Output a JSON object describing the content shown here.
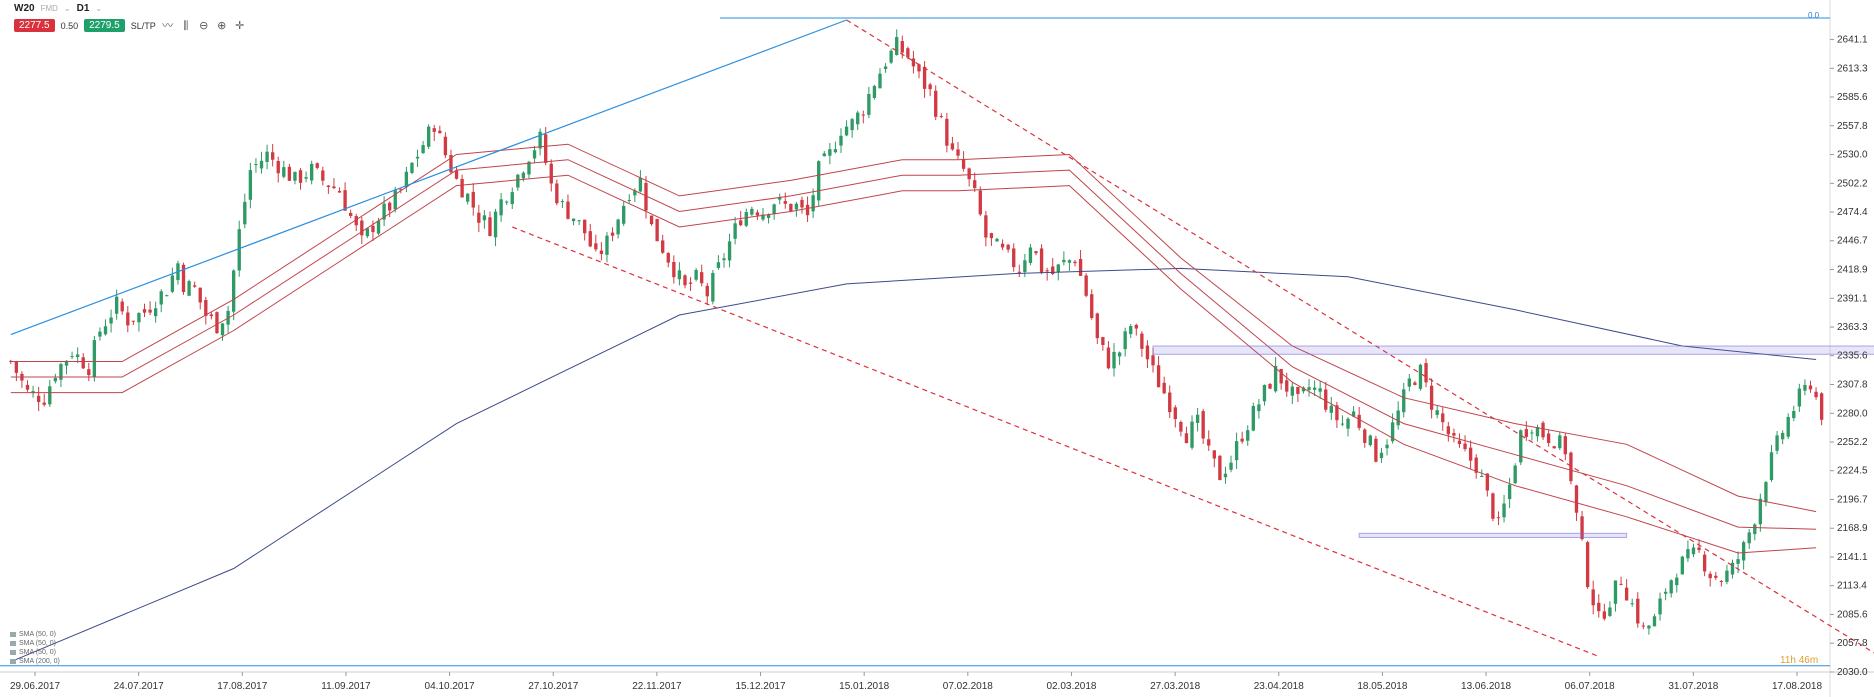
{
  "toolbar": {
    "symbol": "W20",
    "symbol_sub": "FMD",
    "interval": "D1",
    "sell_price": "2277.5",
    "lot": "0.50",
    "buy_price": "2279.5",
    "sltp": "SL/TP",
    "icons": [
      "line-chart-icon",
      "candles-icon",
      "zoom-out-icon",
      "zoom-in-icon",
      "crosshair-icon"
    ]
  },
  "fib_label": "0.0",
  "countdown": "11h 46m",
  "legend": [
    "SMA (50, 0)",
    "SMA (50, 0)",
    "SMA (50, 0)",
    "SMA (200, 0)"
  ],
  "colors": {
    "bull": "#2e9a65",
    "bear": "#d23a43",
    "sma_envelope": "#c0444a",
    "sma200": "#3d4a8c",
    "trendline": "#2a8fe0",
    "channel": "#d9323c",
    "zone": "#7b6fd6"
  },
  "chart_data": {
    "type": "candlestick",
    "title": "W20, D1",
    "y_axis_ticks": [
      "2641.1",
      "2613.3",
      "2585.6",
      "2557.8",
      "2530.0",
      "2502.2",
      "2474.4",
      "2446.7",
      "2418.9",
      "2391.1",
      "2363.3",
      "2335.6",
      "2307.8",
      "2280.0",
      "2252.2",
      "2224.5",
      "2196.7",
      "2168.9",
      "2141.1",
      "2113.4",
      "2085.6",
      "2057.8",
      "2030.0"
    ],
    "x_axis_ticks": [
      "29.06.2017",
      "24.07.2017",
      "17.08.2017",
      "11.09.2017",
      "04.10.2017",
      "27.10.2017",
      "22.11.2017",
      "15.12.2017",
      "15.01.2018",
      "07.02.2018",
      "02.03.2018",
      "27.03.2018",
      "23.04.2018",
      "18.05.2018",
      "13.06.2018",
      "06.07.2018",
      "31.07.2018",
      "17.08.2018"
    ],
    "ylim": [
      2030.0,
      2660.0
    ],
    "close_path": [
      [
        0,
        2330
      ],
      [
        3,
        2300
      ],
      [
        6,
        2295
      ],
      [
        8,
        2320
      ],
      [
        11,
        2340
      ],
      [
        14,
        2325
      ],
      [
        16,
        2360
      ],
      [
        19,
        2385
      ],
      [
        21,
        2370
      ],
      [
        24,
        2378
      ],
      [
        26,
        2390
      ],
      [
        28,
        2400
      ],
      [
        30,
        2425
      ],
      [
        31,
        2405
      ],
      [
        33,
        2400
      ],
      [
        35,
        2375
      ],
      [
        37,
        2365
      ],
      [
        39,
        2380
      ],
      [
        41,
        2455
      ],
      [
        43,
        2515
      ],
      [
        46,
        2530
      ],
      [
        48,
        2520
      ],
      [
        51,
        2505
      ],
      [
        54,
        2515
      ],
      [
        56,
        2505
      ],
      [
        59,
        2495
      ],
      [
        61,
        2470
      ],
      [
        63,
        2445
      ],
      [
        66,
        2470
      ],
      [
        68,
        2480
      ],
      [
        70,
        2495
      ],
      [
        72,
        2520
      ],
      [
        74,
        2540
      ],
      [
        76,
        2560
      ],
      [
        78,
        2530
      ],
      [
        80,
        2505
      ],
      [
        82,
        2490
      ],
      [
        84,
        2470
      ],
      [
        86,
        2460
      ],
      [
        88,
        2485
      ],
      [
        91,
        2510
      ],
      [
        93,
        2530
      ],
      [
        95,
        2545
      ],
      [
        97,
        2500
      ],
      [
        99,
        2480
      ],
      [
        101,
        2470
      ],
      [
        103,
        2455
      ],
      [
        105,
        2430
      ],
      [
        107,
        2445
      ],
      [
        109,
        2470
      ],
      [
        111,
        2495
      ],
      [
        113,
        2505
      ],
      [
        115,
        2460
      ],
      [
        117,
        2440
      ],
      [
        119,
        2420
      ],
      [
        121,
        2400
      ],
      [
        123,
        2410
      ],
      [
        125,
        2395
      ],
      [
        127,
        2420
      ],
      [
        129,
        2445
      ],
      [
        131,
        2470
      ],
      [
        133,
        2480
      ],
      [
        135,
        2475
      ],
      [
        137,
        2485
      ],
      [
        139,
        2480
      ],
      [
        141,
        2480
      ],
      [
        143,
        2470
      ],
      [
        145,
        2515
      ],
      [
        147,
        2530
      ],
      [
        149,
        2555
      ],
      [
        151,
        2560
      ],
      [
        153,
        2575
      ],
      [
        155,
        2600
      ],
      [
        157,
        2620
      ],
      [
        159,
        2635
      ],
      [
        161,
        2625
      ],
      [
        163,
        2605
      ],
      [
        165,
        2590
      ],
      [
        167,
        2560
      ],
      [
        169,
        2530
      ],
      [
        171,
        2515
      ],
      [
        173,
        2490
      ],
      [
        175,
        2450
      ],
      [
        177,
        2440
      ],
      [
        179,
        2430
      ],
      [
        181,
        2420
      ],
      [
        183,
        2445
      ],
      [
        185,
        2420
      ],
      [
        187,
        2415
      ],
      [
        189,
        2425
      ],
      [
        191,
        2430
      ],
      [
        193,
        2395
      ],
      [
        195,
        2350
      ],
      [
        197,
        2330
      ],
      [
        199,
        2340
      ],
      [
        201,
        2365
      ],
      [
        203,
        2345
      ],
      [
        205,
        2320
      ],
      [
        207,
        2300
      ],
      [
        209,
        2280
      ],
      [
        211,
        2260
      ],
      [
        213,
        2270
      ],
      [
        215,
        2240
      ],
      [
        217,
        2220
      ],
      [
        219,
        2235
      ],
      [
        221,
        2260
      ],
      [
        223,
        2280
      ],
      [
        225,
        2300
      ],
      [
        227,
        2320
      ],
      [
        229,
        2305
      ],
      [
        231,
        2290
      ],
      [
        233,
        2305
      ],
      [
        235,
        2300
      ],
      [
        237,
        2280
      ],
      [
        239,
        2270
      ],
      [
        241,
        2280
      ],
      [
        243,
        2260
      ],
      [
        245,
        2240
      ],
      [
        247,
        2255
      ],
      [
        249,
        2280
      ],
      [
        251,
        2310
      ],
      [
        253,
        2320
      ],
      [
        255,
        2290
      ],
      [
        257,
        2270
      ],
      [
        259,
        2250
      ],
      [
        261,
        2240
      ],
      [
        263,
        2230
      ],
      [
        265,
        2200
      ],
      [
        267,
        2170
      ],
      [
        269,
        2210
      ],
      [
        271,
        2260
      ],
      [
        273,
        2270
      ],
      [
        275,
        2260
      ],
      [
        277,
        2255
      ],
      [
        279,
        2245
      ],
      [
        281,
        2180
      ],
      [
        283,
        2120
      ],
      [
        285,
        2080
      ],
      [
        287,
        2100
      ],
      [
        289,
        2120
      ],
      [
        291,
        2095
      ],
      [
        293,
        2070
      ],
      [
        295,
        2080
      ],
      [
        297,
        2110
      ],
      [
        299,
        2130
      ],
      [
        301,
        2140
      ],
      [
        303,
        2145
      ],
      [
        305,
        2125
      ],
      [
        307,
        2120
      ],
      [
        309,
        2130
      ],
      [
        311,
        2150
      ],
      [
        313,
        2180
      ],
      [
        315,
        2220
      ],
      [
        317,
        2250
      ],
      [
        319,
        2275
      ],
      [
        321,
        2295
      ],
      [
        323,
        2310
      ],
      [
        325,
        2280
      ]
    ],
    "n_bars": 327,
    "overlays": [
      {
        "name": "SMA 200",
        "type": "line",
        "points": [
          [
            0,
            2040
          ],
          [
            40,
            2130
          ],
          [
            80,
            2270
          ],
          [
            120,
            2375
          ],
          [
            150,
            2405
          ],
          [
            180,
            2415
          ],
          [
            210,
            2420
          ],
          [
            240,
            2412
          ],
          [
            270,
            2380
          ],
          [
            300,
            2345
          ],
          [
            324,
            2332
          ]
        ]
      },
      {
        "name": "Envelope upper",
        "type": "line",
        "points": [
          [
            0,
            2330
          ],
          [
            20,
            2330
          ],
          [
            40,
            2390
          ],
          [
            60,
            2460
          ],
          [
            80,
            2530
          ],
          [
            100,
            2540
          ],
          [
            120,
            2490
          ],
          [
            140,
            2505
          ],
          [
            160,
            2525
          ],
          [
            170,
            2525
          ],
          [
            190,
            2530
          ],
          [
            210,
            2430
          ],
          [
            230,
            2345
          ],
          [
            250,
            2295
          ],
          [
            270,
            2270
          ],
          [
            290,
            2250
          ],
          [
            310,
            2200
          ],
          [
            324,
            2185
          ]
        ]
      },
      {
        "name": "Envelope middle",
        "type": "line",
        "points": [
          [
            0,
            2315
          ],
          [
            20,
            2315
          ],
          [
            40,
            2375
          ],
          [
            60,
            2445
          ],
          [
            80,
            2515
          ],
          [
            100,
            2525
          ],
          [
            120,
            2475
          ],
          [
            140,
            2490
          ],
          [
            160,
            2510
          ],
          [
            170,
            2510
          ],
          [
            190,
            2515
          ],
          [
            210,
            2415
          ],
          [
            230,
            2325
          ],
          [
            250,
            2270
          ],
          [
            270,
            2240
          ],
          [
            290,
            2210
          ],
          [
            310,
            2170
          ],
          [
            324,
            2168
          ]
        ]
      },
      {
        "name": "Envelope lower",
        "type": "line",
        "points": [
          [
            0,
            2300
          ],
          [
            20,
            2300
          ],
          [
            40,
            2360
          ],
          [
            60,
            2430
          ],
          [
            80,
            2500
          ],
          [
            100,
            2510
          ],
          [
            120,
            2460
          ],
          [
            140,
            2475
          ],
          [
            160,
            2495
          ],
          [
            170,
            2495
          ],
          [
            190,
            2500
          ],
          [
            210,
            2400
          ],
          [
            230,
            2310
          ],
          [
            250,
            2250
          ],
          [
            270,
            2210
          ],
          [
            290,
            2180
          ],
          [
            310,
            2145
          ],
          [
            324,
            2150
          ]
        ]
      }
    ],
    "drawings": [
      {
        "type": "trendline",
        "from": [
          0,
          2356
        ],
        "to": [
          150,
          2660
        ]
      },
      {
        "type": "channel-top",
        "from": [
          150,
          2660
        ],
        "to": [
          340,
          2030
        ]
      },
      {
        "type": "channel-bottom",
        "from": [
          90,
          2460
        ],
        "to": [
          285,
          2045
        ]
      },
      {
        "type": "zone",
        "x0": 205,
        "x1": 340,
        "y0": 2337,
        "y1": 2345
      },
      {
        "type": "zone",
        "x0": 242,
        "x1": 290,
        "y0": 2160,
        "y1": 2164
      }
    ]
  }
}
